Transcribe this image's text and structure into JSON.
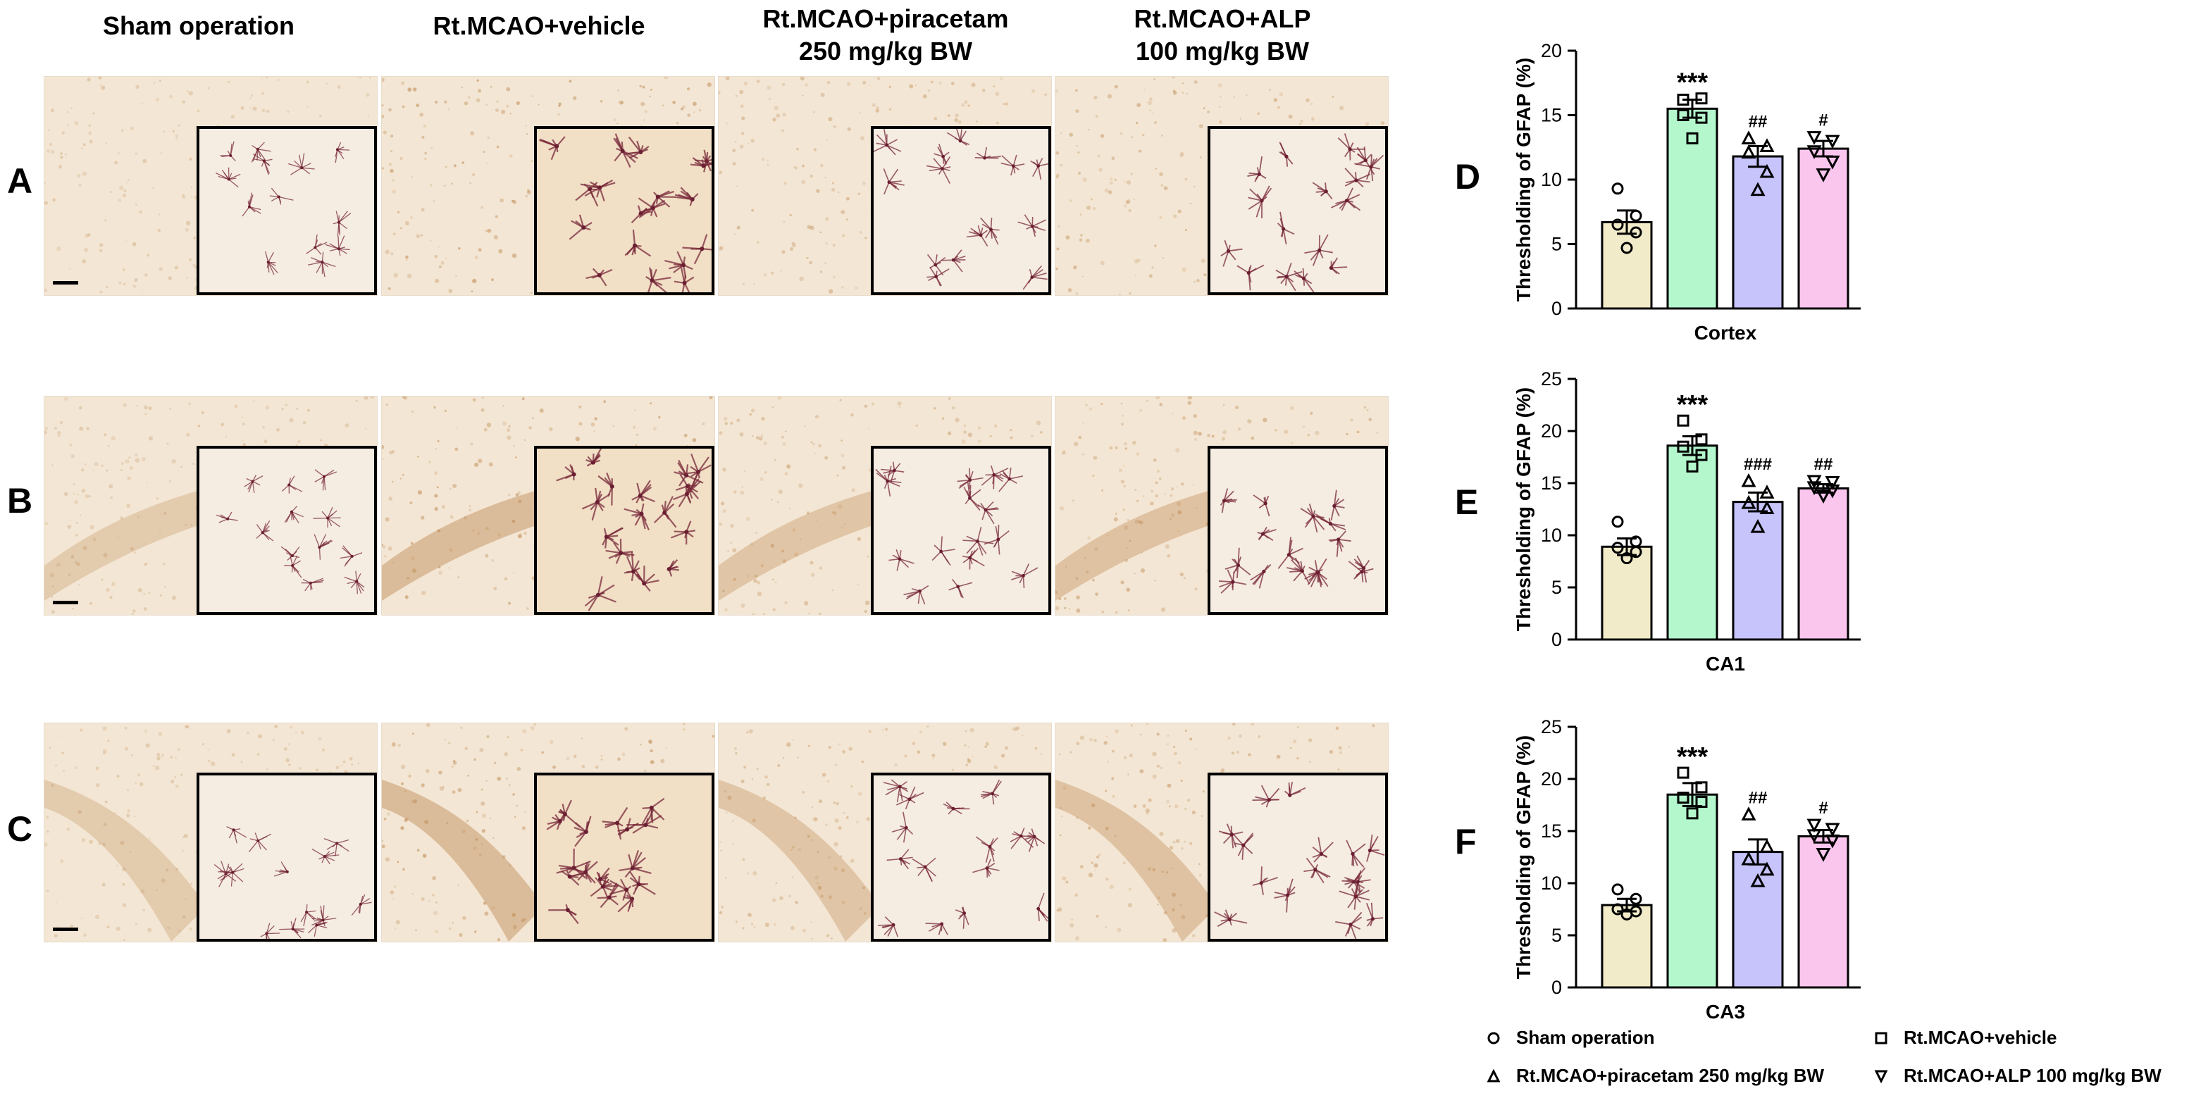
{
  "columns": [
    "Sham operation",
    "Rt.MCAO+vehicle",
    "Rt.MCAO+piracetam\n250 mg/kg BW",
    "Rt.MCAO+ALP\n100 mg/kg BW"
  ],
  "row_letters": [
    "A",
    "B",
    "C"
  ],
  "colors": {
    "sham": "#f2ebc9",
    "vehicle": "#b4f7cd",
    "piracetam": "#c6c4fb",
    "alp": "#fbc6ee",
    "tissue": "#f3e6d4",
    "stain": "#b57a3c"
  },
  "legend": [
    {
      "marker": "circle",
      "label": "Sham operation"
    },
    {
      "marker": "square",
      "label": "Rt.MCAO+vehicle"
    },
    {
      "marker": "triangle-up",
      "label": "Rt.MCAO+piracetam 250 mg/kg BW"
    },
    {
      "marker": "triangle-down",
      "label": "Rt.MCAO+ALP 100 mg/kg BW"
    }
  ],
  "chart_data": [
    {
      "type": "bar",
      "panel_label": "D",
      "xlabel": "Cortex",
      "ylabel": "Thresholding of GFAP (%)",
      "ylim": [
        0,
        20
      ],
      "yticks": [
        0,
        5,
        10,
        15,
        20
      ],
      "categories": [
        "Sham operation",
        "Rt.MCAO+vehicle",
        "Rt.MCAO+piracetam 250 mg/kg BW",
        "Rt.MCAO+ALP 100 mg/kg BW"
      ],
      "values": [
        6.7,
        15.5,
        11.8,
        12.4
      ],
      "errors": [
        0.9,
        0.7,
        0.8,
        0.6
      ],
      "points": [
        [
          9.3,
          7.2,
          6.5,
          5.9,
          4.7
        ],
        [
          16.2,
          16.3,
          15.0,
          14.8,
          13.2
        ],
        [
          13.2,
          12.6,
          12.1,
          10.6,
          9.2
        ],
        [
          13.3,
          13.0,
          12.2,
          11.4,
          10.4
        ]
      ],
      "annotations": [
        "",
        "***",
        "##",
        "#"
      ]
    },
    {
      "type": "bar",
      "panel_label": "E",
      "xlabel": "CA1",
      "ylabel": "Thresholding of GFAP (%)",
      "ylim": [
        0,
        25
      ],
      "yticks": [
        0,
        5,
        10,
        15,
        20,
        25
      ],
      "categories": [
        "Sham operation",
        "Rt.MCAO+vehicle",
        "Rt.MCAO+piracetam 250 mg/kg BW",
        "Rt.MCAO+ALP 100 mg/kg BW"
      ],
      "values": [
        8.9,
        18.6,
        13.2,
        14.5
      ],
      "errors": [
        0.8,
        0.9,
        0.9,
        0.4
      ],
      "points": [
        [
          11.3,
          9.4,
          8.8,
          8.4,
          7.8
        ],
        [
          21.0,
          19.2,
          18.5,
          17.7,
          16.6
        ],
        [
          15.2,
          14.1,
          13.1,
          12.6,
          10.8
        ],
        [
          15.2,
          15.1,
          14.6,
          14.3,
          13.8
        ]
      ],
      "annotations": [
        "",
        "***",
        "###",
        "##"
      ]
    },
    {
      "type": "bar",
      "panel_label": "F",
      "xlabel": "CA3",
      "ylabel": "Thresholding of GFAP (%)",
      "ylim": [
        0,
        25
      ],
      "yticks": [
        0,
        5,
        10,
        15,
        20,
        25
      ],
      "categories": [
        "Sham operation",
        "Rt.MCAO+vehicle",
        "Rt.MCAO+piracetam 250 mg/kg BW",
        "Rt.MCAO+ALP 100 mg/kg BW"
      ],
      "values": [
        7.9,
        18.5,
        13.0,
        14.5
      ],
      "errors": [
        0.6,
        1.1,
        1.2,
        0.6
      ],
      "points": [
        [
          9.4,
          8.5,
          7.5,
          7.3,
          7.0
        ],
        [
          20.6,
          19.2,
          18.2,
          17.8,
          16.7
        ],
        [
          16.6,
          13.5,
          12.3,
          11.3,
          10.2
        ],
        [
          15.6,
          15.2,
          14.6,
          14.1,
          12.8
        ]
      ],
      "annotations": [
        "",
        "***",
        "##",
        "#"
      ]
    }
  ]
}
